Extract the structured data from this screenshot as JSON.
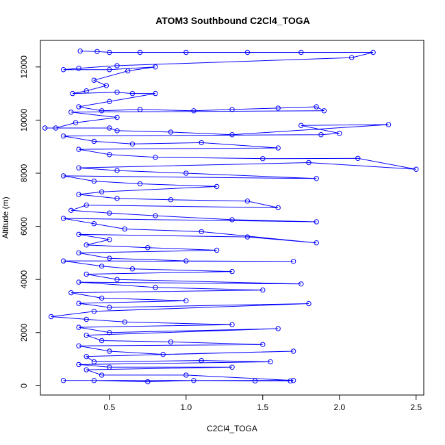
{
  "chart_data": {
    "type": "line",
    "title": "ATOM3 Southbound C2Cl4_TOGA",
    "xlabel": "C2Cl4_TOGA",
    "ylabel": "Altitude (m)",
    "xlim": [
      0.05,
      2.55
    ],
    "ylim": [
      -350,
      13000
    ],
    "xticks": [
      "0.5",
      "1.0",
      "1.5",
      "2.0",
      "2.5"
    ],
    "xtick_values": [
      0.5,
      1.0,
      1.5,
      2.0,
      2.5
    ],
    "yticks": [
      "0",
      "2000",
      "4000",
      "6000",
      "8000",
      "10000",
      "12000"
    ],
    "ytick_values": [
      0,
      2000,
      4000,
      6000,
      8000,
      10000,
      12000
    ],
    "series": [
      {
        "color": "#0000ff",
        "marker": "open-circle",
        "points": [
          [
            0.31,
            12600
          ],
          [
            0.42,
            12580
          ],
          [
            0.5,
            12550
          ],
          [
            0.7,
            12550
          ],
          [
            1.0,
            12550
          ],
          [
            1.4,
            12550
          ],
          [
            1.75,
            12550
          ],
          [
            2.22,
            12550
          ],
          [
            2.08,
            12350
          ],
          [
            0.55,
            12050
          ],
          [
            0.3,
            11950
          ],
          [
            0.2,
            11900
          ],
          [
            0.5,
            11900
          ],
          [
            0.8,
            12000
          ],
          [
            0.62,
            11850
          ],
          [
            0.4,
            11500
          ],
          [
            0.48,
            11300
          ],
          [
            0.35,
            11100
          ],
          [
            0.26,
            11000
          ],
          [
            0.55,
            11050
          ],
          [
            0.65,
            11000
          ],
          [
            0.8,
            11000
          ],
          [
            0.5,
            10700
          ],
          [
            0.3,
            10500
          ],
          [
            0.45,
            10350
          ],
          [
            0.7,
            10400
          ],
          [
            1.05,
            10350
          ],
          [
            1.3,
            10400
          ],
          [
            1.6,
            10450
          ],
          [
            1.85,
            10500
          ],
          [
            1.9,
            10350
          ],
          [
            0.25,
            10300
          ],
          [
            0.55,
            10100
          ],
          [
            0.28,
            9900
          ],
          [
            0.15,
            9700
          ],
          [
            0.08,
            9700
          ],
          [
            0.5,
            9700
          ],
          [
            0.55,
            9600
          ],
          [
            0.9,
            9550
          ],
          [
            1.3,
            9450
          ],
          [
            2.32,
            9830
          ],
          [
            1.75,
            9800
          ],
          [
            2.0,
            9500
          ],
          [
            1.88,
            9450
          ],
          [
            0.2,
            9400
          ],
          [
            0.4,
            9200
          ],
          [
            0.65,
            9100
          ],
          [
            1.1,
            9150
          ],
          [
            1.6,
            8950
          ],
          [
            0.3,
            8900
          ],
          [
            0.5,
            8700
          ],
          [
            0.8,
            8600
          ],
          [
            1.5,
            8550
          ],
          [
            2.12,
            8560
          ],
          [
            2.5,
            8150
          ],
          [
            1.8,
            8400
          ],
          [
            0.3,
            8200
          ],
          [
            0.55,
            8100
          ],
          [
            1.0,
            8000
          ],
          [
            1.85,
            7800
          ],
          [
            0.2,
            7900
          ],
          [
            0.4,
            7700
          ],
          [
            0.7,
            7600
          ],
          [
            1.2,
            7500
          ],
          [
            0.45,
            7300
          ],
          [
            0.3,
            7200
          ],
          [
            0.55,
            7050
          ],
          [
            0.9,
            7000
          ],
          [
            1.4,
            6950
          ],
          [
            1.6,
            6700
          ],
          [
            0.35,
            6800
          ],
          [
            0.25,
            6600
          ],
          [
            0.5,
            6500
          ],
          [
            0.8,
            6400
          ],
          [
            1.3,
            6250
          ],
          [
            1.85,
            6170
          ],
          [
            0.2,
            6300
          ],
          [
            0.4,
            6100
          ],
          [
            0.6,
            5900
          ],
          [
            1.1,
            5800
          ],
          [
            1.85,
            5380
          ],
          [
            1.4,
            5600
          ],
          [
            0.3,
            5700
          ],
          [
            0.5,
            5500
          ],
          [
            0.35,
            5300
          ],
          [
            0.75,
            5200
          ],
          [
            1.2,
            5100
          ],
          [
            0.3,
            5000
          ],
          [
            0.5,
            4800
          ],
          [
            1.0,
            4700
          ],
          [
            1.7,
            4680
          ],
          [
            0.2,
            4700
          ],
          [
            0.45,
            4500
          ],
          [
            0.65,
            4400
          ],
          [
            1.3,
            4300
          ],
          [
            0.35,
            4200
          ],
          [
            0.55,
            4000
          ],
          [
            1.75,
            3830
          ],
          [
            0.3,
            3900
          ],
          [
            0.8,
            3700
          ],
          [
            1.5,
            3600
          ],
          [
            0.25,
            3500
          ],
          [
            0.45,
            3300
          ],
          [
            1.0,
            3200
          ],
          [
            0.3,
            3100
          ],
          [
            0.5,
            2950
          ],
          [
            1.8,
            3090
          ],
          [
            0.4,
            2800
          ],
          [
            0.12,
            2600
          ],
          [
            0.35,
            2500
          ],
          [
            0.6,
            2400
          ],
          [
            1.3,
            2300
          ],
          [
            0.3,
            2200
          ],
          [
            0.5,
            2000
          ],
          [
            1.6,
            2150
          ],
          [
            0.35,
            1900
          ],
          [
            0.45,
            1700
          ],
          [
            0.9,
            1650
          ],
          [
            1.5,
            1550
          ],
          [
            0.3,
            1500
          ],
          [
            0.5,
            1300
          ],
          [
            0.85,
            1180
          ],
          [
            1.7,
            1300
          ],
          [
            0.35,
            1100
          ],
          [
            0.4,
            900
          ],
          [
            1.1,
            950
          ],
          [
            1.55,
            900
          ],
          [
            0.3,
            800
          ],
          [
            0.5,
            700
          ],
          [
            1.3,
            700
          ],
          [
            0.35,
            600
          ],
          [
            0.45,
            400
          ],
          [
            1.0,
            400
          ],
          [
            1.7,
            200
          ],
          [
            0.2,
            200
          ],
          [
            0.4,
            200
          ],
          [
            0.75,
            150
          ],
          [
            1.05,
            200
          ],
          [
            1.45,
            180
          ],
          [
            1.68,
            180
          ]
        ]
      }
    ],
    "grid": false,
    "legend": "none"
  }
}
